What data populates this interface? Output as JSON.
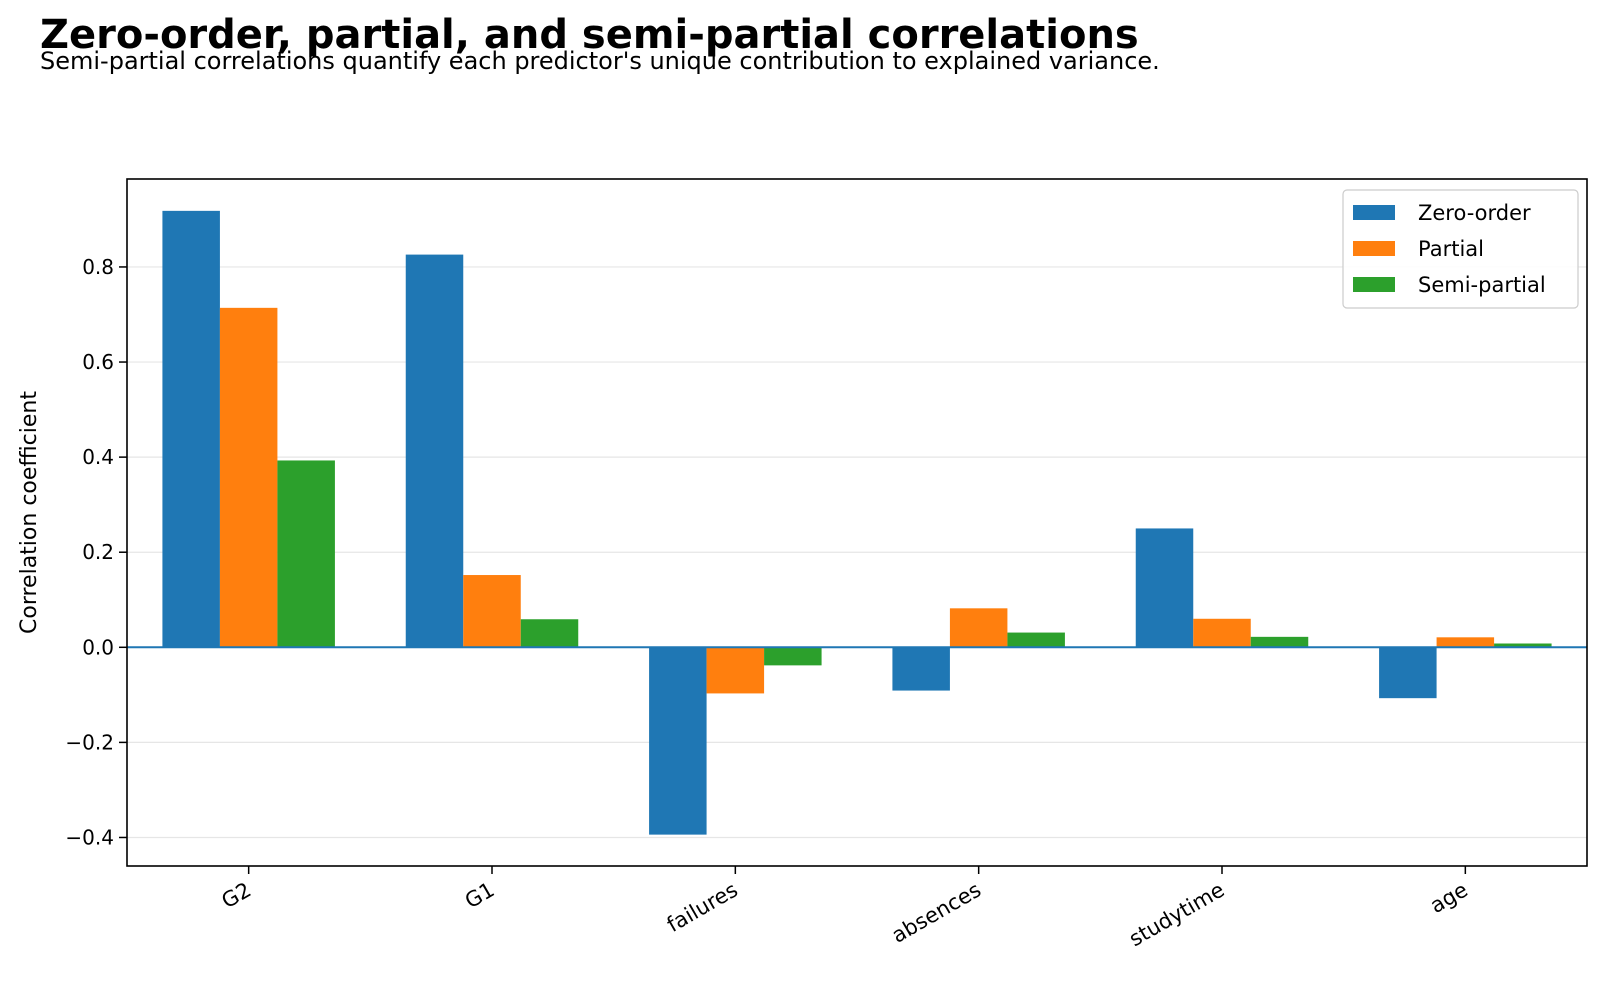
{
  "colors": {
    "zero_order": "#1f77b4",
    "partial": "#ff7f0e",
    "semi_partial": "#2ca02c",
    "grid": "#e6e6e6",
    "zero_line": "#1f77b4",
    "axes": "#000000"
  },
  "chart_data": {
    "type": "bar",
    "title": "Zero-order, partial, and semi-partial correlations",
    "subtitle": "Semi-partial correlations quantify each predictor's unique contribution to explained variance.",
    "xlabel": "",
    "ylabel": "Correlation coefficient",
    "categories": [
      "G2",
      "G1",
      "failures",
      "absences",
      "studytime",
      "age"
    ],
    "series": [
      {
        "name": "Zero-order",
        "values": [
          0.918,
          0.826,
          -0.394,
          -0.091,
          0.25,
          -0.107
        ]
      },
      {
        "name": "Partial",
        "values": [
          0.714,
          0.152,
          -0.097,
          0.082,
          0.06,
          0.021
        ]
      },
      {
        "name": "Semi-partial",
        "values": [
          0.393,
          0.059,
          -0.038,
          0.031,
          0.022,
          0.008
        ]
      }
    ],
    "ylim": [
      -0.46,
      0.985
    ],
    "yticks": [
      -0.4,
      -0.2,
      0.0,
      0.2,
      0.4,
      0.6,
      0.8
    ],
    "ytick_labels": [
      "−0.4",
      "−0.2",
      "0.0",
      "0.2",
      "0.4",
      "0.6",
      "0.8"
    ],
    "grid": "horizontal",
    "zero_line": true,
    "legend_position": "top-right",
    "xtick_rotation": "slanted"
  }
}
